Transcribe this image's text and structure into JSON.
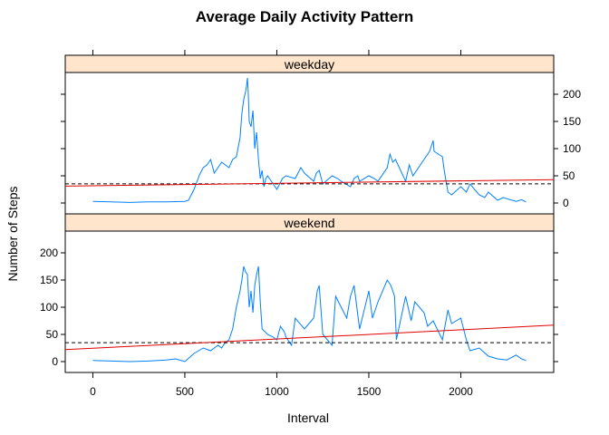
{
  "chart_data": {
    "type": "line",
    "title": "Average Daily Activity Pattern",
    "xlabel": "Interval",
    "ylabel": "Number of Steps",
    "xlim": [
      -150,
      2505
    ],
    "ylim": [
      -20,
      240
    ],
    "x_ticks": [
      "0",
      "500",
      "1000",
      "1500",
      "2000"
    ],
    "y_ticks": [
      "0",
      "50",
      "100",
      "150",
      "200"
    ],
    "colors": {
      "series": "#0080ff",
      "fit": "#e00000",
      "mean": "#000000",
      "strip": "#ffe5cc"
    },
    "panels": [
      {
        "label": "weekday",
        "mean_line": 35.3,
        "fit_line": {
          "x": [
            -150,
            2505
          ],
          "y": [
            31,
            43
          ]
        },
        "series": [
          {
            "x": [
              0,
              100,
              200,
              300,
              400,
              500,
              520,
              550,
              580,
              600,
              620,
              640,
              660,
              700,
              720,
              740,
              760,
              780,
              800,
              810,
              820,
              830,
              835,
              840,
              845,
              850,
              860,
              870,
              880,
              890,
              900,
              910,
              920,
              930,
              940,
              950,
              980,
              1000,
              1030,
              1050,
              1100,
              1130,
              1150,
              1200,
              1215,
              1230,
              1250,
              1300,
              1330,
              1350,
              1400,
              1420,
              1440,
              1450,
              1500,
              1530,
              1550,
              1600,
              1615,
              1630,
              1645,
              1700,
              1720,
              1740,
              1800,
              1830,
              1845,
              1850,
              1855,
              1900,
              1910,
              1920,
              1930,
              1950,
              2000,
              2030,
              2050,
              2100,
              2130,
              2150,
              2200,
              2230,
              2300,
              2330,
              2355
            ],
            "y": [
              3,
              2,
              1,
              2,
              2,
              3,
              5,
              25,
              52,
              65,
              70,
              80,
              55,
              75,
              70,
              65,
              80,
              85,
              120,
              165,
              190,
              205,
              215,
              230,
              200,
              150,
              140,
              170,
              100,
              130,
              80,
              45,
              60,
              30,
              45,
              50,
              35,
              25,
              45,
              50,
              45,
              65,
              55,
              40,
              55,
              60,
              35,
              50,
              45,
              40,
              30,
              45,
              50,
              40,
              50,
              45,
              40,
              65,
              90,
              75,
              80,
              40,
              70,
              50,
              80,
              95,
              110,
              115,
              95,
              85,
              60,
              40,
              20,
              15,
              30,
              20,
              35,
              15,
              10,
              20,
              5,
              10,
              3,
              6,
              2
            ]
          }
        ]
      },
      {
        "label": "weekend",
        "mean_line": 34.7,
        "fit_line": {
          "x": [
            -150,
            2505
          ],
          "y": [
            22,
            67
          ]
        },
        "series": [
          {
            "x": [
              0,
              100,
              200,
              300,
              400,
              450,
              500,
              550,
              600,
              640,
              680,
              700,
              720,
              740,
              760,
              780,
              800,
              810,
              820,
              830,
              840,
              850,
              860,
              870,
              880,
              890,
              900,
              910,
              920,
              950,
              980,
              1000,
              1020,
              1040,
              1050,
              1080,
              1100,
              1150,
              1200,
              1220,
              1230,
              1250,
              1300,
              1320,
              1350,
              1380,
              1400,
              1420,
              1450,
              1500,
              1520,
              1550,
              1600,
              1620,
              1640,
              1650,
              1700,
              1730,
              1750,
              1800,
              1820,
              1850,
              1900,
              1930,
              1950,
              2000,
              2030,
              2050,
              2100,
              2150,
              2200,
              2250,
              2300,
              2330,
              2355
            ],
            "y": [
              2,
              1,
              0,
              1,
              3,
              5,
              0,
              15,
              25,
              20,
              30,
              25,
              35,
              40,
              60,
              100,
              130,
              150,
              175,
              165,
              160,
              100,
              130,
              90,
              140,
              160,
              175,
              110,
              60,
              50,
              45,
              40,
              65,
              55,
              45,
              30,
              80,
              60,
              80,
              130,
              140,
              50,
              30,
              120,
              100,
              80,
              120,
              140,
              60,
              130,
              80,
              110,
              150,
              140,
              120,
              40,
              120,
              75,
              110,
              90,
              65,
              75,
              40,
              95,
              70,
              80,
              40,
              20,
              25,
              10,
              5,
              3,
              12,
              5,
              2
            ]
          }
        ]
      }
    ]
  }
}
